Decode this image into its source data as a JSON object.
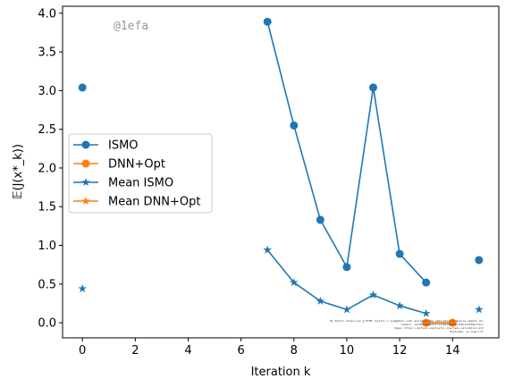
{
  "chart_data": {
    "type": "line",
    "xlabel": "Iteration k",
    "ylabel": "𝔼(J(x*_k))",
    "xlim": [
      -0.75,
      15.75
    ],
    "ylim": [
      -0.195,
      4.09
    ],
    "xticks": [
      0,
      2,
      4,
      6,
      8,
      10,
      12,
      14
    ],
    "xtick_labels": [
      "0",
      "2",
      "4",
      "6",
      "8",
      "10",
      "12",
      "14"
    ],
    "yticks": [
      0.0,
      0.5,
      1.0,
      1.5,
      2.0,
      2.5,
      3.0,
      3.5,
      4.0
    ],
    "ytick_labels": [
      "0.0",
      "0.5",
      "1.0",
      "1.5",
      "2.0",
      "2.5",
      "3.0",
      "3.5",
      "4.0"
    ],
    "grid": false,
    "legend_position": "center-left",
    "series": [
      {
        "name": "ISMO",
        "color": "#1f77b4",
        "marker": "circle",
        "points": [
          [
            0,
            3.04
          ],
          [
            7,
            3.89
          ],
          [
            8,
            2.55
          ],
          [
            9,
            1.33
          ],
          [
            10,
            0.72
          ],
          [
            11,
            3.04
          ],
          [
            12,
            0.89
          ],
          [
            13,
            0.52
          ],
          [
            15,
            0.81
          ]
        ],
        "segments": [
          [
            7,
            8,
            9,
            10,
            11,
            12,
            13
          ]
        ]
      },
      {
        "name": "DNN+Opt",
        "color": "#ff7f0e",
        "marker": "circle",
        "points": [
          [
            13,
            0.0
          ],
          [
            14,
            0.0
          ]
        ],
        "segments": [
          [
            13,
            14
          ]
        ]
      },
      {
        "name": "Mean ISMO",
        "color": "#1f77b4",
        "marker": "star",
        "points": [
          [
            0,
            0.44
          ],
          [
            7,
            0.94
          ],
          [
            8,
            0.52
          ],
          [
            9,
            0.28
          ],
          [
            10,
            0.17
          ],
          [
            11,
            0.36
          ],
          [
            12,
            0.22
          ],
          [
            13,
            0.12
          ],
          [
            15,
            0.17
          ]
        ],
        "segments": [
          [
            7,
            8,
            9,
            10,
            11,
            12,
            13
          ]
        ]
      },
      {
        "name": "Mean DNN+Opt",
        "color": "#ff7f0e",
        "marker": "star",
        "points": [
          [
            13,
            0.0
          ],
          [
            14,
            0.0
          ]
        ],
        "segments": [
          [
            13,
            14
          ]
        ]
      }
    ],
    "watermark": "@1efa",
    "credit_lines": [
      "By Kjetil Olsen Lye @ ETHZ <kjetil.o.lye@gmail.com> and Deep Rep Laboratories @uwlie.deepfl.ch>",
      "Commit: 1efa9f44f8b93ff14d0070b2f9e7b8c4c0139e7cecc",
      "Repo: https://github.com/kjetil-lye/ismo_validation.git",
      "Hostname: eu-login-27"
    ]
  }
}
